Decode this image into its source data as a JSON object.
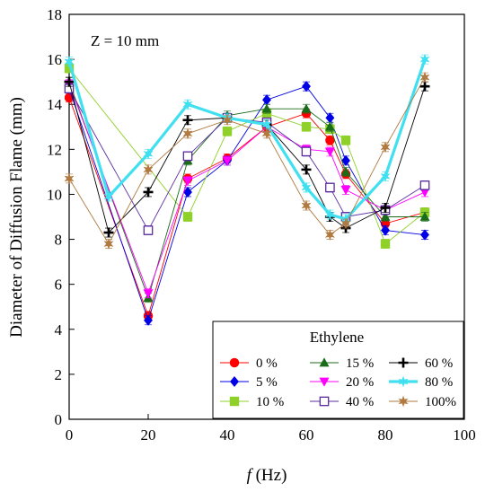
{
  "chart_data": {
    "type": "line",
    "xlabel_italic": "f",
    "xlabel_rest": " (Hz)",
    "ylabel": "Diameter of  Diffusion Flame (mm)",
    "annotation": "Z = 10 mm",
    "legend_title": "Ethylene",
    "xlim": [
      0,
      100
    ],
    "ylim": [
      0,
      18
    ],
    "xticks": [
      0,
      20,
      40,
      60,
      80,
      100
    ],
    "yticks": [
      0,
      2,
      4,
      6,
      8,
      10,
      12,
      14,
      16,
      18
    ],
    "legend_position": "bottom-right",
    "series": [
      {
        "name": "0 %",
        "color": "#ff0000",
        "marker": "circle",
        "x": [
          0,
          20,
          30,
          40,
          50,
          60,
          66,
          70,
          80,
          90
        ],
        "y": [
          14.3,
          4.6,
          10.7,
          11.6,
          13.0,
          13.6,
          12.4,
          10.9,
          8.7,
          9.2
        ]
      },
      {
        "name": "5 %",
        "color": "#0000e6",
        "marker": "diamond",
        "x": [
          0,
          20,
          30,
          40,
          50,
          60,
          66,
          70,
          80,
          90
        ],
        "y": [
          14.7,
          4.4,
          10.1,
          11.5,
          14.2,
          14.8,
          13.4,
          11.5,
          8.4,
          8.2
        ]
      },
      {
        "name": "10 %",
        "color": "#8fd12a",
        "marker": "square",
        "x": [
          0,
          30,
          40,
          50,
          60,
          66,
          70,
          80,
          90
        ],
        "y": [
          15.6,
          9.0,
          12.8,
          13.6,
          13.0,
          12.9,
          12.4,
          7.8,
          9.2
        ]
      },
      {
        "name": "15 %",
        "color": "#1a6b1a",
        "marker": "triangle-up",
        "x": [
          0,
          20,
          30,
          40,
          50,
          60,
          66,
          70,
          80,
          90
        ],
        "y": [
          15.0,
          5.4,
          11.5,
          13.5,
          13.8,
          13.8,
          13.0,
          11.0,
          9.0,
          9.0
        ]
      },
      {
        "name": "20 %",
        "color": "#ff00ff",
        "marker": "triangle-down",
        "x": [
          0,
          20,
          30,
          40,
          50,
          60,
          66,
          70,
          80,
          90
        ],
        "y": [
          14.9,
          5.6,
          10.6,
          11.5,
          13.0,
          12.0,
          11.9,
          10.2,
          9.3,
          10.1
        ]
      },
      {
        "name": "40 %",
        "color": "#5a2ca0",
        "marker": "square-open",
        "x": [
          0,
          20,
          30,
          40,
          50,
          60,
          66,
          70,
          80,
          90
        ],
        "y": [
          14.7,
          8.4,
          11.7,
          13.4,
          13.2,
          11.9,
          10.3,
          9.0,
          9.3,
          10.4
        ]
      },
      {
        "name": "60 %",
        "color": "#000000",
        "marker": "plus",
        "x": [
          0,
          10,
          20,
          30,
          40,
          50,
          60,
          66,
          70,
          80,
          90
        ],
        "y": [
          15.0,
          8.3,
          10.1,
          13.3,
          13.4,
          13.1,
          11.1,
          9.0,
          8.5,
          9.4,
          14.8
        ]
      },
      {
        "name": "80 %",
        "color": "#40e0f0",
        "marker": "star-cyan",
        "x": [
          0,
          10,
          20,
          30,
          40,
          50,
          60,
          66,
          70,
          80,
          90
        ],
        "y": [
          15.9,
          9.9,
          11.8,
          14.0,
          13.4,
          13.1,
          10.3,
          9.1,
          8.9,
          10.8,
          16.0
        ]
      },
      {
        "name": "100%",
        "color": "#b07a40",
        "marker": "star",
        "x": [
          0,
          10,
          20,
          30,
          40,
          50,
          60,
          66,
          70,
          80,
          90
        ],
        "y": [
          10.7,
          7.8,
          11.1,
          12.7,
          13.3,
          12.7,
          9.5,
          8.2,
          8.7,
          12.1,
          15.2
        ]
      }
    ]
  }
}
